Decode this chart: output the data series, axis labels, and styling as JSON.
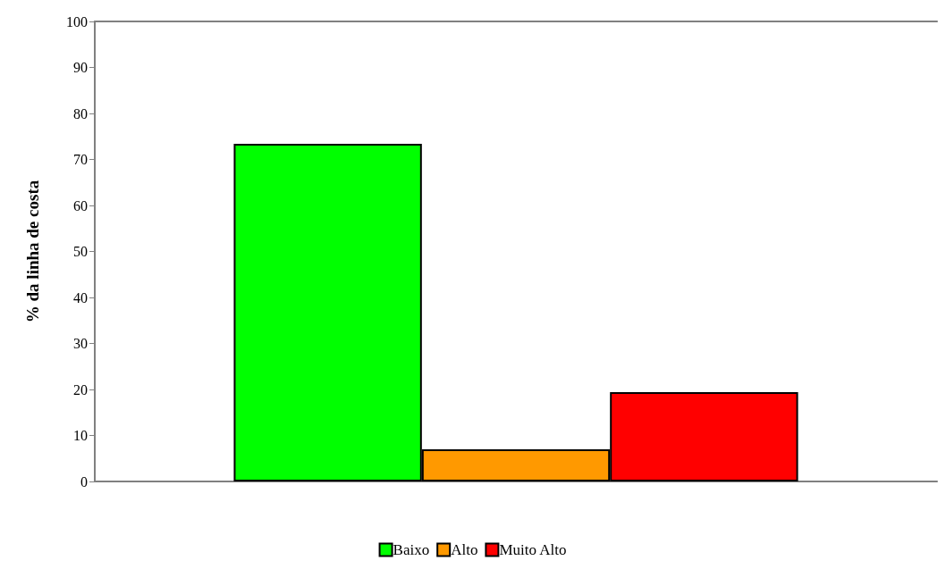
{
  "chart_data": {
    "type": "bar",
    "ylabel": "% da linha de costa",
    "categories": [
      null
    ],
    "series": [
      {
        "name": "Baixo",
        "color": "#00ff00",
        "values": [
          73.4
        ]
      },
      {
        "name": "Alto",
        "color": "#ff9900",
        "values": [
          7.0
        ]
      },
      {
        "name": "Muito Alto",
        "color": "#ff0000",
        "values": [
          19.4
        ]
      }
    ],
    "ylim": [
      0,
      100
    ],
    "yticks": [
      0,
      10,
      20,
      30,
      40,
      50,
      60,
      70,
      80,
      90,
      100
    ],
    "grid": false,
    "legend": "bottom"
  }
}
